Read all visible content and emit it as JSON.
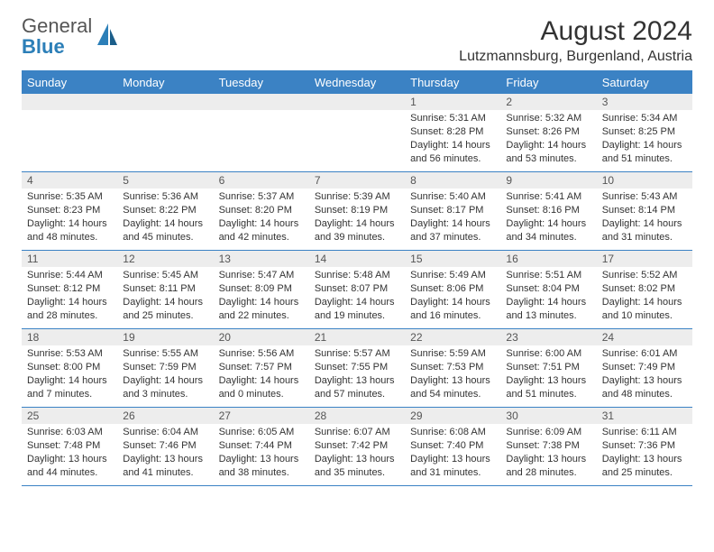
{
  "brand": {
    "text_gray": "General",
    "text_blue": "Blue"
  },
  "title": "August 2024",
  "location": "Lutzmannsburg, Burgenland, Austria",
  "colors": {
    "header_blue": "#3b82c4",
    "row_gray": "#ededed",
    "text": "#333333",
    "brand_blue": "#2c7fb8"
  },
  "weekdays": [
    "Sunday",
    "Monday",
    "Tuesday",
    "Wednesday",
    "Thursday",
    "Friday",
    "Saturday"
  ],
  "layout": {
    "columns": 7,
    "rows": 5
  },
  "weeks": [
    [
      {
        "n": "",
        "sunrise": "",
        "sunset": "",
        "daylight": ""
      },
      {
        "n": "",
        "sunrise": "",
        "sunset": "",
        "daylight": ""
      },
      {
        "n": "",
        "sunrise": "",
        "sunset": "",
        "daylight": ""
      },
      {
        "n": "",
        "sunrise": "",
        "sunset": "",
        "daylight": ""
      },
      {
        "n": "1",
        "sunrise": "Sunrise: 5:31 AM",
        "sunset": "Sunset: 8:28 PM",
        "daylight": "Daylight: 14 hours and 56 minutes."
      },
      {
        "n": "2",
        "sunrise": "Sunrise: 5:32 AM",
        "sunset": "Sunset: 8:26 PM",
        "daylight": "Daylight: 14 hours and 53 minutes."
      },
      {
        "n": "3",
        "sunrise": "Sunrise: 5:34 AM",
        "sunset": "Sunset: 8:25 PM",
        "daylight": "Daylight: 14 hours and 51 minutes."
      }
    ],
    [
      {
        "n": "4",
        "sunrise": "Sunrise: 5:35 AM",
        "sunset": "Sunset: 8:23 PM",
        "daylight": "Daylight: 14 hours and 48 minutes."
      },
      {
        "n": "5",
        "sunrise": "Sunrise: 5:36 AM",
        "sunset": "Sunset: 8:22 PM",
        "daylight": "Daylight: 14 hours and 45 minutes."
      },
      {
        "n": "6",
        "sunrise": "Sunrise: 5:37 AM",
        "sunset": "Sunset: 8:20 PM",
        "daylight": "Daylight: 14 hours and 42 minutes."
      },
      {
        "n": "7",
        "sunrise": "Sunrise: 5:39 AM",
        "sunset": "Sunset: 8:19 PM",
        "daylight": "Daylight: 14 hours and 39 minutes."
      },
      {
        "n": "8",
        "sunrise": "Sunrise: 5:40 AM",
        "sunset": "Sunset: 8:17 PM",
        "daylight": "Daylight: 14 hours and 37 minutes."
      },
      {
        "n": "9",
        "sunrise": "Sunrise: 5:41 AM",
        "sunset": "Sunset: 8:16 PM",
        "daylight": "Daylight: 14 hours and 34 minutes."
      },
      {
        "n": "10",
        "sunrise": "Sunrise: 5:43 AM",
        "sunset": "Sunset: 8:14 PM",
        "daylight": "Daylight: 14 hours and 31 minutes."
      }
    ],
    [
      {
        "n": "11",
        "sunrise": "Sunrise: 5:44 AM",
        "sunset": "Sunset: 8:12 PM",
        "daylight": "Daylight: 14 hours and 28 minutes."
      },
      {
        "n": "12",
        "sunrise": "Sunrise: 5:45 AM",
        "sunset": "Sunset: 8:11 PM",
        "daylight": "Daylight: 14 hours and 25 minutes."
      },
      {
        "n": "13",
        "sunrise": "Sunrise: 5:47 AM",
        "sunset": "Sunset: 8:09 PM",
        "daylight": "Daylight: 14 hours and 22 minutes."
      },
      {
        "n": "14",
        "sunrise": "Sunrise: 5:48 AM",
        "sunset": "Sunset: 8:07 PM",
        "daylight": "Daylight: 14 hours and 19 minutes."
      },
      {
        "n": "15",
        "sunrise": "Sunrise: 5:49 AM",
        "sunset": "Sunset: 8:06 PM",
        "daylight": "Daylight: 14 hours and 16 minutes."
      },
      {
        "n": "16",
        "sunrise": "Sunrise: 5:51 AM",
        "sunset": "Sunset: 8:04 PM",
        "daylight": "Daylight: 14 hours and 13 minutes."
      },
      {
        "n": "17",
        "sunrise": "Sunrise: 5:52 AM",
        "sunset": "Sunset: 8:02 PM",
        "daylight": "Daylight: 14 hours and 10 minutes."
      }
    ],
    [
      {
        "n": "18",
        "sunrise": "Sunrise: 5:53 AM",
        "sunset": "Sunset: 8:00 PM",
        "daylight": "Daylight: 14 hours and 7 minutes."
      },
      {
        "n": "19",
        "sunrise": "Sunrise: 5:55 AM",
        "sunset": "Sunset: 7:59 PM",
        "daylight": "Daylight: 14 hours and 3 minutes."
      },
      {
        "n": "20",
        "sunrise": "Sunrise: 5:56 AM",
        "sunset": "Sunset: 7:57 PM",
        "daylight": "Daylight: 14 hours and 0 minutes."
      },
      {
        "n": "21",
        "sunrise": "Sunrise: 5:57 AM",
        "sunset": "Sunset: 7:55 PM",
        "daylight": "Daylight: 13 hours and 57 minutes."
      },
      {
        "n": "22",
        "sunrise": "Sunrise: 5:59 AM",
        "sunset": "Sunset: 7:53 PM",
        "daylight": "Daylight: 13 hours and 54 minutes."
      },
      {
        "n": "23",
        "sunrise": "Sunrise: 6:00 AM",
        "sunset": "Sunset: 7:51 PM",
        "daylight": "Daylight: 13 hours and 51 minutes."
      },
      {
        "n": "24",
        "sunrise": "Sunrise: 6:01 AM",
        "sunset": "Sunset: 7:49 PM",
        "daylight": "Daylight: 13 hours and 48 minutes."
      }
    ],
    [
      {
        "n": "25",
        "sunrise": "Sunrise: 6:03 AM",
        "sunset": "Sunset: 7:48 PM",
        "daylight": "Daylight: 13 hours and 44 minutes."
      },
      {
        "n": "26",
        "sunrise": "Sunrise: 6:04 AM",
        "sunset": "Sunset: 7:46 PM",
        "daylight": "Daylight: 13 hours and 41 minutes."
      },
      {
        "n": "27",
        "sunrise": "Sunrise: 6:05 AM",
        "sunset": "Sunset: 7:44 PM",
        "daylight": "Daylight: 13 hours and 38 minutes."
      },
      {
        "n": "28",
        "sunrise": "Sunrise: 6:07 AM",
        "sunset": "Sunset: 7:42 PM",
        "daylight": "Daylight: 13 hours and 35 minutes."
      },
      {
        "n": "29",
        "sunrise": "Sunrise: 6:08 AM",
        "sunset": "Sunset: 7:40 PM",
        "daylight": "Daylight: 13 hours and 31 minutes."
      },
      {
        "n": "30",
        "sunrise": "Sunrise: 6:09 AM",
        "sunset": "Sunset: 7:38 PM",
        "daylight": "Daylight: 13 hours and 28 minutes."
      },
      {
        "n": "31",
        "sunrise": "Sunrise: 6:11 AM",
        "sunset": "Sunset: 7:36 PM",
        "daylight": "Daylight: 13 hours and 25 minutes."
      }
    ]
  ]
}
